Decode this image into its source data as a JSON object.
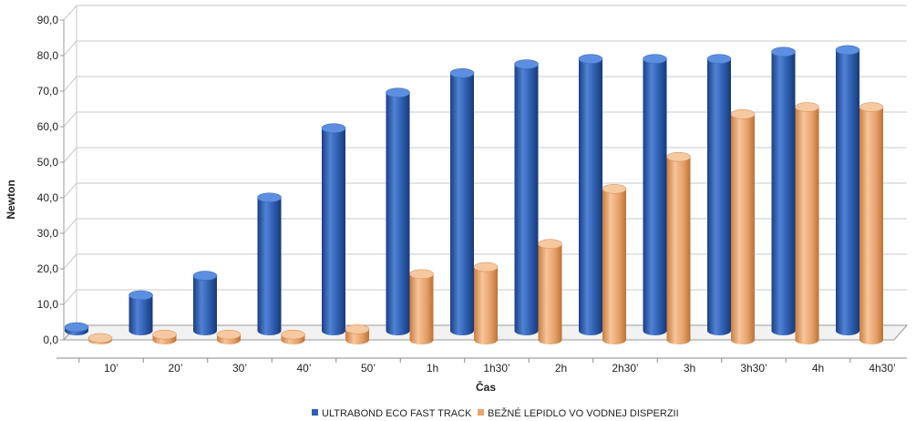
{
  "chart_data": {
    "type": "bar",
    "style": "3d-cylinder",
    "title": "",
    "xlabel": "Čas",
    "ylabel": "Newton",
    "ylim": [
      0,
      90
    ],
    "y_ticks": [
      "0,0",
      "10,0",
      "20,0",
      "30,0",
      "40,0",
      "50,0",
      "60,0",
      "70,0",
      "80,0",
      "90,0"
    ],
    "categories": [
      "10’",
      "20’",
      "30’",
      "40’",
      "50’",
      "1h",
      "1h30’",
      "2h",
      "2h30’",
      "3h",
      "3h30’",
      "4h",
      "4h30’"
    ],
    "series": [
      {
        "name": "ULTRABOND ECO FAST TRACK",
        "color": "#2f5fb0",
        "values": [
          1,
          10,
          15.5,
          37.5,
          57,
          67,
          72.5,
          75,
          76.5,
          76.5,
          76.5,
          78.5,
          79
        ]
      },
      {
        "name": "BEŽNÉ LEPIDLO VO VODNEJ DISPERZII",
        "color": "#e8a66e",
        "values": [
          0.5,
          1.5,
          1.5,
          1.5,
          3,
          18.5,
          20.5,
          27,
          42.5,
          51.5,
          63.5,
          65.5,
          65.5
        ]
      }
    ],
    "grid": true,
    "legend": "bottom-center"
  }
}
